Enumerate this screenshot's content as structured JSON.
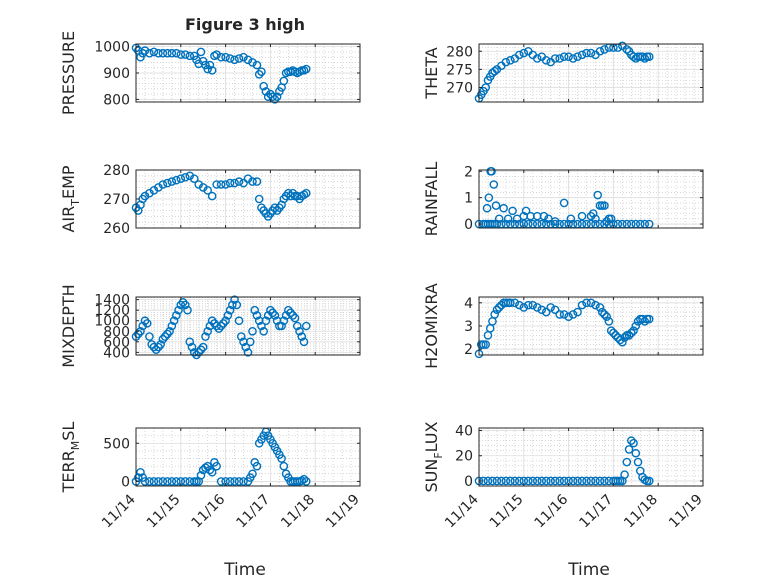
{
  "figure": {
    "title": "Figure 3 high",
    "xlabel": "Time",
    "x_tick_labels": [
      "11/14",
      "11/15",
      "11/16",
      "11/17",
      "11/18",
      "11/19"
    ],
    "marker_color": "#0072BD"
  },
  "chart_data": [
    {
      "type": "scatter",
      "ylabel": "PRESSURE",
      "ylabel_parts": {
        "main": "PRESSURE"
      },
      "ylim": [
        790,
        1010
      ],
      "yticks": [
        800,
        900,
        1000
      ],
      "ytick_labels": [
        "800",
        "900",
        "1000"
      ],
      "x": [
        0.0,
        0.05,
        0.1,
        0.15,
        0.2,
        0.3,
        0.4,
        0.5,
        0.6,
        0.7,
        0.8,
        0.9,
        1.0,
        1.1,
        1.2,
        1.3,
        1.35,
        1.4,
        1.45,
        1.5,
        1.55,
        1.6,
        1.65,
        1.7,
        1.75,
        1.8,
        1.9,
        2.0,
        2.1,
        2.2,
        2.3,
        2.4,
        2.5,
        2.6,
        2.7,
        2.75,
        2.8,
        2.85,
        2.9,
        2.95,
        3.0,
        3.05,
        3.1,
        3.15,
        3.2,
        3.25,
        3.3,
        3.35,
        3.4,
        3.45,
        3.5,
        3.55,
        3.6,
        3.65,
        3.7,
        3.75,
        3.8
      ],
      "y": [
        995,
        985,
        960,
        975,
        985,
        975,
        980,
        975,
        975,
        975,
        975,
        975,
        970,
        970,
        965,
        965,
        950,
        935,
        980,
        945,
        930,
        915,
        930,
        910,
        965,
        970,
        960,
        960,
        955,
        950,
        955,
        960,
        950,
        940,
        930,
        895,
        905,
        850,
        830,
        810,
        820,
        810,
        800,
        810,
        830,
        845,
        870,
        900,
        905,
        905,
        910,
        905,
        900,
        905,
        910,
        910,
        915
      ]
    },
    {
      "type": "scatter",
      "ylabel": "THETA",
      "ylabel_parts": {
        "main": "THETA"
      },
      "ylim": [
        266,
        282
      ],
      "yticks": [
        270,
        275,
        280
      ],
      "ytick_labels": [
        "270",
        "275",
        "280"
      ],
      "x": [
        0.0,
        0.05,
        0.1,
        0.15,
        0.2,
        0.25,
        0.3,
        0.35,
        0.4,
        0.5,
        0.6,
        0.7,
        0.8,
        0.9,
        1.0,
        1.1,
        1.2,
        1.3,
        1.4,
        1.5,
        1.6,
        1.7,
        1.8,
        1.9,
        2.0,
        2.1,
        2.2,
        2.3,
        2.4,
        2.5,
        2.6,
        2.7,
        2.8,
        2.9,
        3.0,
        3.1,
        3.2,
        3.3,
        3.35,
        3.4,
        3.45,
        3.5,
        3.55,
        3.6,
        3.65,
        3.7,
        3.75,
        3.8
      ],
      "y": [
        267,
        268,
        269,
        270,
        272,
        273,
        274,
        274.5,
        275,
        276,
        277,
        277.5,
        278,
        279,
        279.5,
        280,
        279,
        278,
        278.5,
        277.5,
        277,
        278,
        278,
        278.5,
        278.5,
        278,
        278.5,
        279,
        279.5,
        279.5,
        279,
        280,
        280.5,
        281,
        281,
        281,
        281.5,
        280.5,
        280,
        279,
        278.5,
        278,
        278.5,
        278.5,
        278.5,
        278,
        278.5,
        278.5
      ]
    },
    {
      "type": "scatter",
      "ylabel": "AIR_TEMP",
      "ylabel_parts": {
        "main": "AIR",
        "sub": "T",
        "rest": "EMP"
      },
      "ylim": [
        260,
        280
      ],
      "yticks": [
        260,
        270,
        280
      ],
      "ytick_labels": [
        "260",
        "270",
        "280"
      ],
      "x": [
        0.0,
        0.05,
        0.1,
        0.15,
        0.2,
        0.3,
        0.4,
        0.5,
        0.6,
        0.7,
        0.8,
        0.9,
        1.0,
        1.1,
        1.2,
        1.3,
        1.4,
        1.5,
        1.6,
        1.7,
        1.8,
        1.9,
        2.0,
        2.1,
        2.2,
        2.3,
        2.4,
        2.5,
        2.6,
        2.7,
        2.75,
        2.8,
        2.85,
        2.9,
        2.95,
        3.0,
        3.05,
        3.1,
        3.15,
        3.2,
        3.25,
        3.3,
        3.35,
        3.4,
        3.45,
        3.5,
        3.55,
        3.6,
        3.65,
        3.7,
        3.75,
        3.8
      ],
      "y": [
        267,
        266,
        268,
        270,
        271,
        272,
        273,
        274,
        275,
        275.5,
        276,
        276.5,
        277,
        277.5,
        278,
        277,
        275,
        274,
        273,
        271,
        275,
        275,
        275,
        275.5,
        275.5,
        276,
        275.5,
        277,
        276,
        276,
        270,
        267,
        266,
        265,
        264,
        265,
        266,
        267,
        266,
        267,
        268,
        270,
        271,
        272,
        271,
        272,
        271,
        271,
        270,
        271,
        271.5,
        272
      ]
    },
    {
      "type": "scatter",
      "ylabel": "RAINFALL",
      "ylabel_parts": {
        "main": "RAINFALL"
      },
      "ylim": [
        -0.15,
        2.05
      ],
      "yticks": [
        0,
        1,
        2
      ],
      "ytick_labels": [
        "0",
        "1",
        "2"
      ],
      "x": [
        0.0,
        0.1,
        0.15,
        0.2,
        0.25,
        0.3,
        0.35,
        0.4,
        0.5,
        0.6,
        0.7,
        0.8,
        0.9,
        1.0,
        1.1,
        1.2,
        1.3,
        1.4,
        1.5,
        1.6,
        1.7,
        1.8,
        1.9,
        2.0,
        2.1,
        2.2,
        2.3,
        2.4,
        2.5,
        2.6,
        2.7,
        2.8,
        2.9,
        3.0,
        3.1,
        3.2,
        3.3,
        3.4,
        3.5,
        3.6,
        3.7,
        3.8,
        0.18,
        0.22,
        0.26,
        0.28,
        0.33,
        0.38,
        0.45,
        0.55,
        0.65,
        0.75,
        0.85,
        1.0,
        1.05,
        1.15,
        1.3,
        1.45,
        1.55,
        1.7,
        1.9,
        2.05,
        2.3,
        2.5,
        2.55,
        2.6,
        2.65,
        2.7,
        2.75,
        2.8,
        2.85,
        2.9,
        2.95
      ],
      "y": [
        0,
        0,
        0,
        0,
        0,
        0,
        0,
        0,
        0,
        0,
        0,
        0,
        0,
        0,
        0,
        0,
        0,
        0,
        0,
        0,
        0,
        0,
        0,
        0,
        0,
        0,
        0,
        0,
        0,
        0,
        0,
        0,
        0,
        0,
        0,
        0,
        0,
        0,
        0,
        0,
        0,
        0,
        0.6,
        1.0,
        2.0,
        2.0,
        1.5,
        0.7,
        0.2,
        0.6,
        0.2,
        0.5,
        0.2,
        0.3,
        0.5,
        0.3,
        0.3,
        0.3,
        0.2,
        0.1,
        0.8,
        0.2,
        0.3,
        0.3,
        0.4,
        0.2,
        1.1,
        0.7,
        0.7,
        0.7,
        0.1,
        0.2,
        0.2
      ]
    },
    {
      "type": "scatter",
      "ylabel": "MIXDEPTH",
      "ylabel_parts": {
        "main": "MIXDEPTH"
      },
      "ylim": [
        350,
        1450
      ],
      "yticks": [
        400,
        600,
        800,
        1000,
        1200,
        1400
      ],
      "ytick_labels": [
        "400",
        "600",
        "800",
        "1000",
        "1200",
        "1400"
      ],
      "x": [
        0.0,
        0.05,
        0.1,
        0.15,
        0.2,
        0.25,
        0.3,
        0.35,
        0.4,
        0.45,
        0.5,
        0.55,
        0.6,
        0.65,
        0.7,
        0.75,
        0.8,
        0.85,
        0.9,
        0.95,
        1.0,
        1.05,
        1.1,
        1.15,
        1.2,
        1.25,
        1.3,
        1.35,
        1.4,
        1.45,
        1.5,
        1.55,
        1.6,
        1.65,
        1.7,
        1.75,
        1.8,
        1.85,
        1.9,
        1.95,
        2.0,
        2.05,
        2.1,
        2.15,
        2.2,
        2.25,
        2.3,
        2.35,
        2.4,
        2.45,
        2.5,
        2.55,
        2.6,
        2.65,
        2.7,
        2.75,
        2.8,
        2.85,
        2.9,
        2.95,
        3.0,
        3.05,
        3.1,
        3.15,
        3.2,
        3.25,
        3.3,
        3.35,
        3.4,
        3.45,
        3.5,
        3.55,
        3.6,
        3.65,
        3.7,
        3.75,
        3.8
      ],
      "y": [
        700,
        750,
        800,
        900,
        1000,
        950,
        700,
        550,
        500,
        450,
        500,
        550,
        650,
        700,
        750,
        800,
        900,
        1000,
        1100,
        1200,
        1300,
        1350,
        1300,
        1200,
        600,
        500,
        400,
        350,
        400,
        450,
        500,
        700,
        800,
        900,
        1000,
        950,
        900,
        850,
        900,
        950,
        1000,
        1100,
        1200,
        1300,
        1400,
        1300,
        1000,
        700,
        600,
        500,
        400,
        600,
        800,
        1200,
        1100,
        1000,
        900,
        800,
        1000,
        1100,
        1200,
        1150,
        1100,
        1000,
        900,
        900,
        1000,
        1100,
        1200,
        1150,
        1100,
        1050,
        900,
        800,
        700,
        600,
        900
      ]
    },
    {
      "type": "scatter",
      "ylabel": "H2OMIXRA",
      "ylabel_parts": {
        "main": "H2OMIXRA"
      },
      "ylim": [
        1.75,
        4.25
      ],
      "yticks": [
        2,
        3,
        4
      ],
      "ytick_labels": [
        "2",
        "3",
        "4"
      ],
      "x": [
        0.0,
        0.05,
        0.1,
        0.15,
        0.2,
        0.25,
        0.3,
        0.35,
        0.4,
        0.45,
        0.5,
        0.55,
        0.6,
        0.65,
        0.7,
        0.8,
        0.9,
        1.0,
        1.1,
        1.2,
        1.3,
        1.4,
        1.5,
        1.6,
        1.7,
        1.8,
        1.9,
        2.0,
        2.1,
        2.2,
        2.3,
        2.4,
        2.5,
        2.6,
        2.7,
        2.75,
        2.8,
        2.85,
        2.9,
        2.95,
        3.0,
        3.05,
        3.1,
        3.15,
        3.2,
        3.25,
        3.3,
        3.35,
        3.4,
        3.45,
        3.5,
        3.55,
        3.6,
        3.65,
        3.7,
        3.75,
        3.8
      ],
      "y": [
        1.8,
        2.2,
        2.2,
        2.2,
        2.6,
        2.9,
        3.2,
        3.5,
        3.7,
        3.8,
        3.9,
        4.0,
        4.0,
        4.0,
        4.0,
        4.0,
        3.9,
        3.8,
        3.9,
        3.9,
        3.8,
        3.7,
        3.6,
        3.8,
        3.7,
        3.5,
        3.5,
        3.4,
        3.5,
        3.6,
        3.9,
        4.0,
        4.0,
        3.9,
        3.8,
        3.6,
        3.5,
        3.4,
        3.2,
        2.8,
        2.7,
        2.6,
        2.5,
        2.4,
        2.3,
        2.5,
        2.6,
        2.6,
        2.7,
        2.8,
        3.0,
        3.2,
        3.3,
        3.3,
        3.2,
        3.3,
        3.3
      ]
    },
    {
      "type": "scatter",
      "ylabel": "TERR_MSL",
      "ylabel_parts": {
        "main": "TERR",
        "sub": "M",
        "rest": "SL"
      },
      "ylim": [
        -60,
        700
      ],
      "yticks": [
        0,
        500
      ],
      "ytick_labels": [
        "0",
        "500"
      ],
      "x": [
        0.0,
        0.05,
        0.1,
        0.15,
        0.2,
        0.3,
        0.4,
        0.5,
        0.6,
        0.7,
        0.8,
        0.9,
        1.0,
        1.1,
        1.2,
        1.3,
        1.35,
        1.4,
        1.45,
        1.5,
        1.55,
        1.6,
        1.65,
        1.7,
        1.75,
        1.8,
        1.9,
        2.0,
        2.1,
        2.2,
        2.3,
        2.4,
        2.5,
        2.55,
        2.6,
        2.65,
        2.7,
        2.75,
        2.8,
        2.85,
        2.9,
        2.95,
        3.0,
        3.05,
        3.1,
        3.15,
        3.2,
        3.25,
        3.3,
        3.35,
        3.4,
        3.45,
        3.5,
        3.55,
        3.6,
        3.65,
        3.7,
        3.75,
        3.8
      ],
      "y": [
        0,
        50,
        120,
        50,
        0,
        0,
        0,
        0,
        0,
        0,
        0,
        0,
        0,
        0,
        0,
        0,
        0,
        0,
        80,
        150,
        180,
        200,
        150,
        120,
        250,
        200,
        0,
        0,
        0,
        0,
        0,
        0,
        0,
        50,
        100,
        250,
        200,
        500,
        550,
        600,
        650,
        600,
        550,
        500,
        450,
        400,
        350,
        300,
        200,
        100,
        50,
        0,
        0,
        0,
        0,
        0,
        10,
        30,
        0
      ]
    },
    {
      "type": "scatter",
      "ylabel": "SUN_FLUX",
      "ylabel_parts": {
        "main": "SUN",
        "sub": "F",
        "rest": "LUX"
      },
      "ylim": [
        -4,
        42
      ],
      "yticks": [
        0,
        20,
        40
      ],
      "ytick_labels": [
        "0",
        "20",
        "40"
      ],
      "x": [
        0.0,
        0.1,
        0.2,
        0.3,
        0.4,
        0.5,
        0.6,
        0.7,
        0.8,
        0.9,
        1.0,
        1.1,
        1.2,
        1.3,
        1.4,
        1.5,
        1.6,
        1.7,
        1.8,
        1.9,
        2.0,
        2.1,
        2.2,
        2.3,
        2.4,
        2.5,
        2.6,
        2.7,
        2.8,
        2.9,
        3.0,
        3.05,
        3.1,
        3.15,
        3.2,
        3.25,
        3.3,
        3.35,
        3.4,
        3.45,
        3.5,
        3.55,
        3.6,
        3.65,
        3.7,
        3.75,
        3.8
      ],
      "y": [
        0,
        0,
        0,
        0,
        0,
        0,
        0,
        0,
        0,
        0,
        0,
        0,
        0,
        0,
        0,
        0,
        0,
        0,
        0,
        0,
        0,
        0,
        0,
        0,
        0,
        0,
        0,
        0,
        0,
        0,
        0,
        0,
        0,
        0,
        0,
        5,
        15,
        25,
        32,
        30,
        22,
        15,
        8,
        3,
        1,
        0,
        0
      ]
    }
  ]
}
